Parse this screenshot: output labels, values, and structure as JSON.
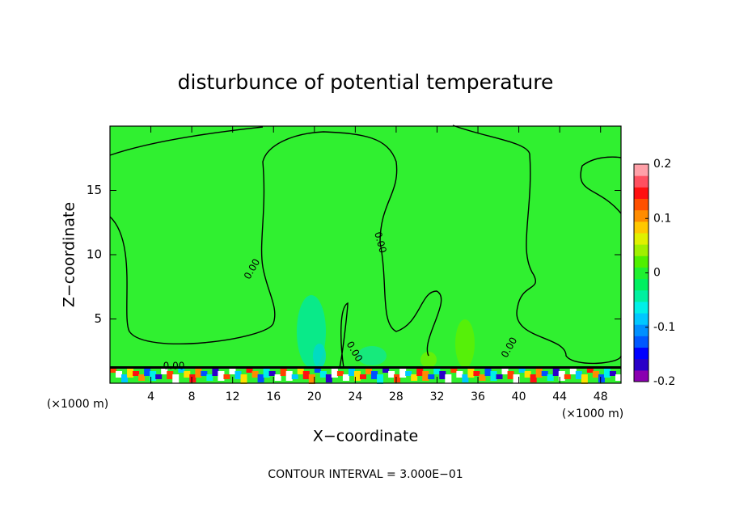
{
  "chart_data": {
    "type": "contour",
    "title": "disturbunce of potential temperature",
    "x_label": "X−coordinate",
    "y_label": "Z−coordinate",
    "x_unit_left": "(×1000 m)",
    "x_unit_right": "(×1000 m)",
    "footer": "CONTOUR INTERVAL = 3.000E−01",
    "annotations": [
      "0.00",
      "0.00",
      "0.00",
      "0.00",
      "0.00"
    ],
    "xlim": [
      0,
      50
    ],
    "xticks": [
      4,
      8,
      12,
      16,
      20,
      24,
      28,
      32,
      36,
      40,
      44,
      48
    ],
    "ylim": [
      0,
      20
    ],
    "yticks": [
      5,
      10,
      15
    ],
    "colorbar_lim": [
      -0.2,
      0.2
    ],
    "colorbar_ticks": [
      -0.2,
      -0.1,
      0,
      0.1,
      0.2
    ],
    "colorbar_colors": [
      "#8a00b0",
      "#2a00c8",
      "#0000ff",
      "#0058ff",
      "#0090ff",
      "#00c8ff",
      "#00f0e8",
      "#00f0a0",
      "#00f060",
      "#20f030",
      "#50f000",
      "#a0f000",
      "#e0f000",
      "#ffc800",
      "#ff8c00",
      "#ff5000",
      "#ff1010",
      "#ff5060",
      "#ffa0a8"
    ],
    "background_color": "#30f030"
  }
}
